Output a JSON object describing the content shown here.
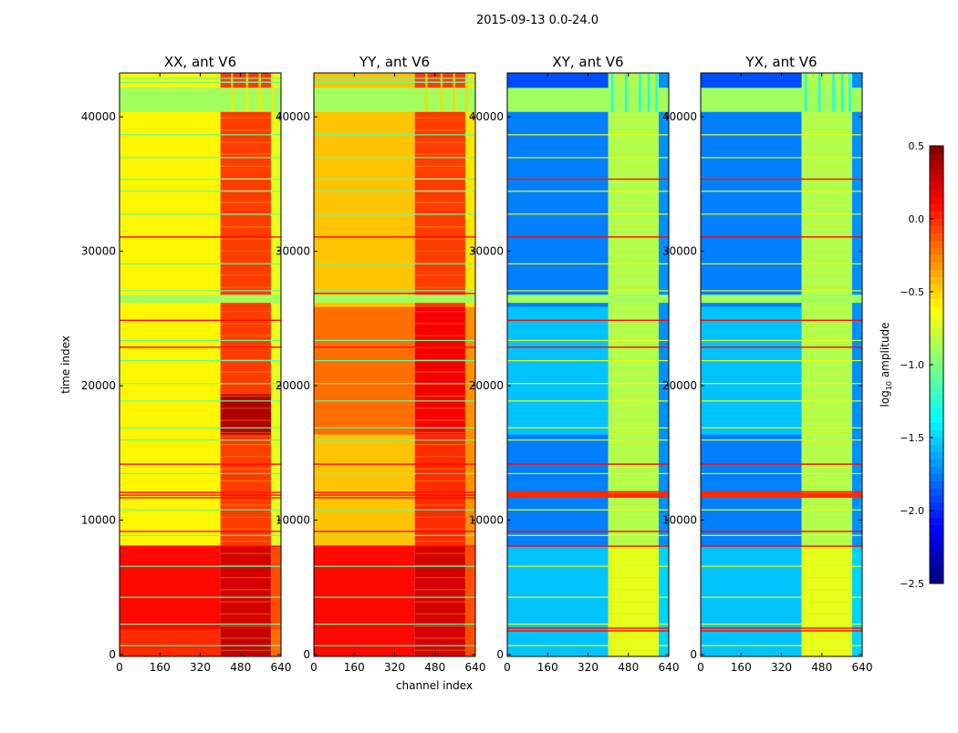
{
  "figure_title": "2015-09-13 0.0-24.0",
  "chart_data": {
    "type": "heatmap",
    "title": "2015-09-13 0.0-24.0",
    "xlabel": "channel index",
    "ylabel": "time index",
    "xlim": [
      0,
      640
    ],
    "ylim": [
      0,
      43400
    ],
    "xticks": [
      "0",
      "160",
      "320",
      "480",
      "640"
    ],
    "xtick_values": [
      0,
      160,
      320,
      480,
      640
    ],
    "yticks": [
      "0",
      "10000",
      "20000",
      "30000",
      "40000"
    ],
    "ytick_values": [
      0,
      10000,
      20000,
      30000,
      40000
    ],
    "colorbar": {
      "label": "log10 amplitude",
      "label_main": "log",
      "label_sub": "10",
      "label_rest": " amplitude",
      "colormap": "jet",
      "range": [
        -2.5,
        0.5
      ],
      "ticks": [
        "0.5",
        "0.0",
        "−0.5",
        "−1.0",
        "−1.5",
        "−2.0",
        "−2.5"
      ],
      "tick_values": [
        0.5,
        0.0,
        -0.5,
        -1.0,
        -1.5,
        -2.0,
        -2.5
      ]
    },
    "panels": [
      {
        "title": "XX, ant V6",
        "blocks": [
          {
            "t": [
              0,
              2000
            ],
            "c": [
              0,
              400
            ],
            "v": 0.0
          },
          {
            "t": [
              0,
              2000
            ],
            "c": [
              400,
              600
            ],
            "v": 0.3
          },
          {
            "t": [
              0,
              2000
            ],
            "c": [
              600,
              640
            ],
            "v": -0.2
          },
          {
            "t": [
              2000,
              8200
            ],
            "c": [
              0,
              400
            ],
            "v": 0.1
          },
          {
            "t": [
              2000,
              8200
            ],
            "c": [
              400,
              600
            ],
            "v": 0.25
          },
          {
            "t": [
              2000,
              8200
            ],
            "c": [
              600,
              640
            ],
            "v": -0.1
          },
          {
            "t": [
              8200,
              43400
            ],
            "c": [
              0,
              400
            ],
            "v": -0.6
          },
          {
            "t": [
              8200,
              43400
            ],
            "c": [
              400,
              600
            ],
            "v": -0.05
          },
          {
            "t": [
              8200,
              43400
            ],
            "c": [
              600,
              640
            ],
            "v": -0.7
          },
          {
            "t": [
              16500,
              19500
            ],
            "c": [
              400,
              600
            ],
            "v": 0.35
          },
          {
            "t": [
              26300,
              26900
            ],
            "c": [
              0,
              640
            ],
            "v": -0.9
          },
          {
            "t": [
              40500,
              42300
            ],
            "c": [
              0,
              640
            ],
            "v": -0.9
          }
        ],
        "stripes": {
          "c": [
            445,
            505,
            555,
            605
          ],
          "v": -0.55
        },
        "cyan_lines": [
          38800,
          37100,
          35500,
          34600,
          32900,
          29200,
          27200,
          23500,
          22000,
          20300,
          19000,
          17000,
          16100,
          13600,
          10900,
          9000,
          6700,
          4400,
          2400,
          800,
          42700,
          43000
        ],
        "red_lines": [
          31200,
          25000,
          23000,
          14300,
          11800,
          12000,
          12200,
          9300,
          8200
        ]
      },
      {
        "title": "YY, ant V6",
        "blocks": [
          {
            "t": [
              0,
              8200
            ],
            "c": [
              0,
              400
            ],
            "v": 0.1
          },
          {
            "t": [
              0,
              8200
            ],
            "c": [
              400,
              600
            ],
            "v": 0.25
          },
          {
            "t": [
              0,
              8200
            ],
            "c": [
              600,
              640
            ],
            "v": -0.1
          },
          {
            "t": [
              8200,
              16500
            ],
            "c": [
              0,
              400
            ],
            "v": -0.45
          },
          {
            "t": [
              8200,
              16500
            ],
            "c": [
              400,
              600
            ],
            "v": 0.0
          },
          {
            "t": [
              16500,
              26000
            ],
            "c": [
              0,
              400
            ],
            "v": -0.2
          },
          {
            "t": [
              16500,
              26000
            ],
            "c": [
              400,
              600
            ],
            "v": 0.15
          },
          {
            "t": [
              8200,
              26000
            ],
            "c": [
              600,
              640
            ],
            "v": -0.3
          },
          {
            "t": [
              26000,
              43400
            ],
            "c": [
              0,
              400
            ],
            "v": -0.45
          },
          {
            "t": [
              26000,
              43400
            ],
            "c": [
              400,
              600
            ],
            "v": -0.05
          },
          {
            "t": [
              26000,
              43400
            ],
            "c": [
              600,
              640
            ],
            "v": -0.55
          },
          {
            "t": [
              26300,
              26900
            ],
            "c": [
              0,
              640
            ],
            "v": -0.9
          },
          {
            "t": [
              40500,
              42300
            ],
            "c": [
              0,
              640
            ],
            "v": -0.9
          }
        ],
        "stripes": {
          "c": [
            445,
            505,
            555,
            605
          ],
          "v": -0.5
        },
        "cyan_lines": [
          38800,
          37100,
          35500,
          34600,
          32900,
          29200,
          27200,
          23500,
          22000,
          20300,
          19000,
          17000,
          16100,
          13600,
          10900,
          9000,
          6700,
          4400,
          2400,
          800,
          42700,
          43000
        ],
        "red_lines": [
          31200,
          27000,
          23000,
          14300,
          11800,
          12000,
          12200,
          9300,
          8200
        ]
      },
      {
        "title": "XY, ant V6",
        "blocks": [
          {
            "t": [
              0,
              8200
            ],
            "c": [
              0,
              400
            ],
            "v": -1.55
          },
          {
            "t": [
              0,
              8200
            ],
            "c": [
              400,
              600
            ],
            "v": -0.7
          },
          {
            "t": [
              0,
              8200
            ],
            "c": [
              600,
              640
            ],
            "v": -1.5
          },
          {
            "t": [
              8200,
              43400
            ],
            "c": [
              0,
              400
            ],
            "v": -1.75
          },
          {
            "t": [
              8200,
              43400
            ],
            "c": [
              400,
              600
            ],
            "v": -0.85
          },
          {
            "t": [
              8200,
              43400
            ],
            "c": [
              600,
              640
            ],
            "v": -1.7
          },
          {
            "t": [
              16500,
              26000
            ],
            "c": [
              0,
              400
            ],
            "v": -1.55
          },
          {
            "t": [
              11800,
              12300
            ],
            "c": [
              0,
              640
            ],
            "v": 0.0
          },
          {
            "t": [
              26300,
              26900
            ],
            "c": [
              0,
              640
            ],
            "v": -0.9
          },
          {
            "t": [
              40500,
              42300
            ],
            "c": [
              0,
              640
            ],
            "v": -0.9
          },
          {
            "t": [
              42300,
              43400
            ],
            "c": [
              0,
              400
            ],
            "v": -1.9
          }
        ],
        "stripes": {
          "c": [
            415,
            470,
            525,
            560,
            590
          ],
          "v": -1.35
        },
        "cyan_lines": [
          38800,
          37100,
          35500,
          34600,
          32900,
          29200,
          27200,
          23500,
          22000,
          20300,
          19000,
          17000,
          16100,
          13600,
          10900,
          9000,
          6700,
          4400,
          2400,
          800
        ],
        "red_lines": [
          35500,
          31200,
          25000,
          23000,
          14300,
          9300,
          8200,
          2100,
          1900
        ]
      },
      {
        "title": "YX, ant V6",
        "blocks": [
          {
            "t": [
              0,
              8200
            ],
            "c": [
              0,
              400
            ],
            "v": -1.55
          },
          {
            "t": [
              0,
              8200
            ],
            "c": [
              400,
              600
            ],
            "v": -0.7
          },
          {
            "t": [
              0,
              8200
            ],
            "c": [
              600,
              640
            ],
            "v": -1.5
          },
          {
            "t": [
              8200,
              43400
            ],
            "c": [
              0,
              400
            ],
            "v": -1.75
          },
          {
            "t": [
              8200,
              43400
            ],
            "c": [
              400,
              600
            ],
            "v": -0.85
          },
          {
            "t": [
              8200,
              43400
            ],
            "c": [
              600,
              640
            ],
            "v": -1.7
          },
          {
            "t": [
              16500,
              26000
            ],
            "c": [
              0,
              400
            ],
            "v": -1.55
          },
          {
            "t": [
              11800,
              12300
            ],
            "c": [
              0,
              640
            ],
            "v": 0.0
          },
          {
            "t": [
              26300,
              26900
            ],
            "c": [
              0,
              640
            ],
            "v": -0.9
          },
          {
            "t": [
              40500,
              42300
            ],
            "c": [
              0,
              640
            ],
            "v": -0.9
          },
          {
            "t": [
              42300,
              43400
            ],
            "c": [
              0,
              400
            ],
            "v": -1.9
          }
        ],
        "stripes": {
          "c": [
            415,
            470,
            525,
            560,
            590
          ],
          "v": -1.35
        },
        "cyan_lines": [
          38800,
          37100,
          35500,
          34600,
          32900,
          29200,
          27200,
          23500,
          22000,
          20300,
          19000,
          17000,
          16100,
          13600,
          10900,
          9000,
          6700,
          4400,
          2400,
          800
        ],
        "red_lines": [
          35500,
          31200,
          25000,
          23000,
          14300,
          9300,
          8200,
          2100,
          1900
        ]
      }
    ]
  }
}
